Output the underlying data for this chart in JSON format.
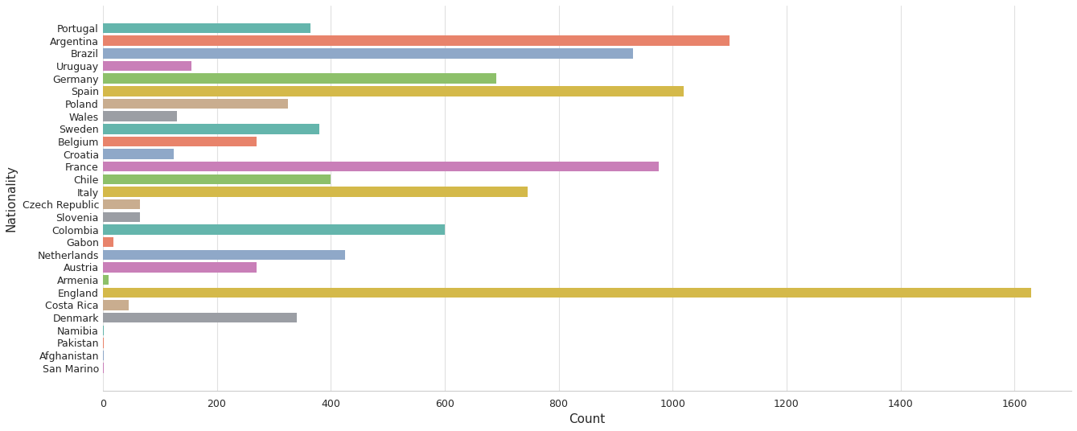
{
  "categories": [
    "Portugal",
    "Argentina",
    "Brazil",
    "Uruguay",
    "Germany",
    "Spain",
    "Poland",
    "Wales",
    "Sweden",
    "Belgium",
    "Croatia",
    "France",
    "Chile",
    "Italy",
    "Czech Republic",
    "Slovenia",
    "Colombia",
    "Gabon",
    "Netherlands",
    "Austria",
    "Armenia",
    "England",
    "Costa Rica",
    "Denmark",
    "Namibia",
    "Pakistan",
    "Afghanistan",
    "San Marino"
  ],
  "values": [
    365,
    1100,
    930,
    155,
    690,
    1020,
    325,
    130,
    380,
    270,
    125,
    975,
    400,
    745,
    65,
    65,
    600,
    18,
    425,
    270,
    10,
    1630,
    45,
    340,
    2,
    2,
    1,
    1
  ],
  "colors": [
    "#64b5ac",
    "#e8836b",
    "#8fa8c8",
    "#c97fb8",
    "#8dc06a",
    "#d4b94a",
    "#c9ad8f",
    "#9b9ea4",
    "#64b5ac",
    "#e8836b",
    "#8fa8c8",
    "#c97fb8",
    "#8dc06a",
    "#d4b94a",
    "#c9ad8f",
    "#9b9ea4",
    "#64b5ac",
    "#e8836b",
    "#8fa8c8",
    "#c97fb8",
    "#8dc06a",
    "#d4b94a",
    "#c9ad8f",
    "#9b9ea4",
    "#64b5ac",
    "#e8836b",
    "#8fa8c8",
    "#c97fb8"
  ],
  "xlabel": "Count",
  "ylabel": "Nationality",
  "xlim": [
    0,
    1700
  ],
  "xticks": [
    0,
    200,
    400,
    600,
    800,
    1000,
    1200,
    1400,
    1600
  ],
  "title": "",
  "figsize": [
    13.39,
    5.36
  ],
  "dpi": 100,
  "bar_height": 0.8,
  "background_color": "#ffffff",
  "grid_color": "#e0e0e0"
}
